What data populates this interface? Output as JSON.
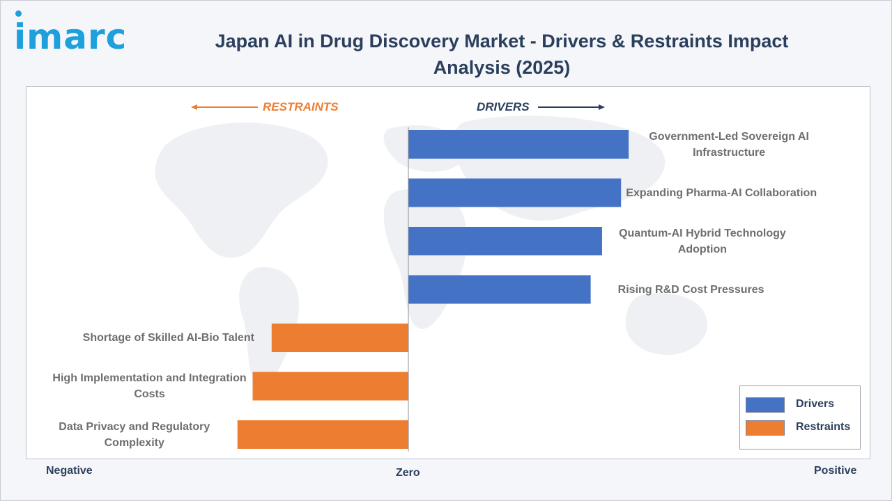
{
  "brand": {
    "logo_text": "imarc"
  },
  "title": "Japan AI in Drug Discovery Market - Drivers & Restraints Impact Analysis (2025)",
  "direction_labels": {
    "restraints": "RESTRAINTS",
    "drivers": "DRIVERS"
  },
  "axis": {
    "negative": "Negative",
    "zero": "Zero",
    "positive": "Positive"
  },
  "legend": [
    {
      "label": "Drivers",
      "color": "#4472c4"
    },
    {
      "label": "Restraints",
      "color": "#ed7d31"
    }
  ],
  "chart_data": {
    "type": "bar",
    "orientation": "horizontal",
    "title": "Japan AI in Drug Discovery Market - Drivers & Restraints Impact Analysis (2025)",
    "xlim": [
      -1,
      1
    ],
    "categories": [
      "Government-Led Sovereign AI Infrastructure",
      "Expanding Pharma-AI Collaboration",
      "Quantum-AI Hybrid Technology Adoption",
      "Rising R&D Cost Pressures",
      "Shortage of Skilled AI-Bio Talent",
      "High Implementation and Integration Costs",
      "Data Privacy and Regulatory Complexity"
    ],
    "series": [
      {
        "name": "Drivers",
        "color": "#4472c4",
        "values": [
          0.58,
          0.56,
          0.51,
          0.48,
          null,
          null,
          null
        ]
      },
      {
        "name": "Restraints",
        "color": "#ed7d31",
        "values": [
          null,
          null,
          null,
          null,
          -0.36,
          -0.41,
          -0.45
        ]
      }
    ],
    "legend_position": "bottom-right",
    "grid": false
  }
}
